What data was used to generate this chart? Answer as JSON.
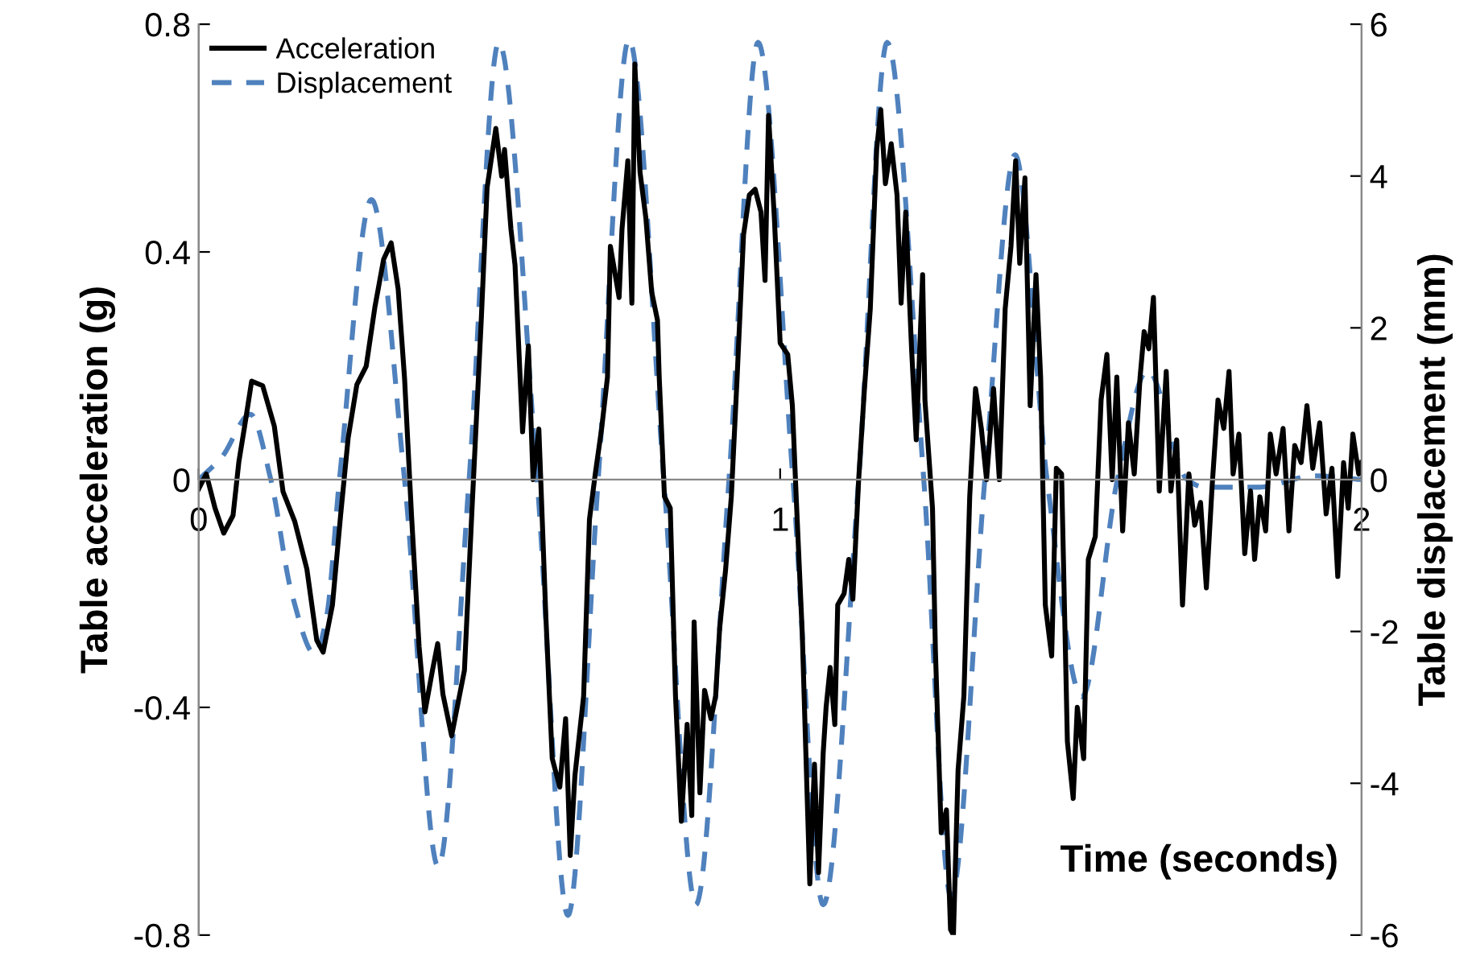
{
  "chart_data": {
    "type": "line",
    "xlabel": "Time (seconds)",
    "ylabel": "Table acceleration (g)",
    "y2label": "Table displacement (mm)",
    "xlim": [
      0,
      2
    ],
    "xticks": [
      0,
      1,
      2
    ],
    "ylim": [
      -0.8,
      0.8
    ],
    "yticks": [
      -0.8,
      -0.4,
      0,
      0.4,
      0.8
    ],
    "y2lim": [
      -6,
      6
    ],
    "y2ticks": [
      -6,
      -4,
      -2,
      0,
      2,
      4,
      6
    ],
    "grid": false,
    "legend": "top left",
    "marker": "none",
    "series": [
      {
        "name": "Acceleration",
        "color": "#000000",
        "line_style": "solid",
        "axis": "y",
        "x": [
          0,
          0.013,
          0.028,
          0.043,
          0.059,
          0.069,
          0.079,
          0.091,
          0.11,
          0.13,
          0.145,
          0.165,
          0.186,
          0.203,
          0.214,
          0.23,
          0.244,
          0.257,
          0.272,
          0.288,
          0.303,
          0.318,
          0.331,
          0.343,
          0.354,
          0.366,
          0.379,
          0.389,
          0.402,
          0.411,
          0.42,
          0.435,
          0.447,
          0.457,
          0.47,
          0.486,
          0.496,
          0.511,
          0.521,
          0.526,
          0.537,
          0.544,
          0.557,
          0.567,
          0.575,
          0.585,
          0.597,
          0.608,
          0.621,
          0.631,
          0.639,
          0.647,
          0.662,
          0.672,
          0.682,
          0.693,
          0.703,
          0.708,
          0.723,
          0.728,
          0.738,
          0.745,
          0.75,
          0.759,
          0.769,
          0.779,
          0.789,
          0.792,
          0.801,
          0.811,
          0.82,
          0.83,
          0.84,
          0.848,
          0.852,
          0.862,
          0.87,
          0.881,
          0.889,
          0.896,
          0.906,
          0.916,
          0.926,
          0.937,
          0.947,
          0.957,
          0.967,
          0.974,
          0.98,
          0.99,
          1.0,
          1.013,
          1.021,
          1.028,
          1.038,
          1.051,
          1.059,
          1.066,
          1.074,
          1.079,
          1.086,
          1.094,
          1.099,
          1.11,
          1.118,
          1.125,
          1.135,
          1.145,
          1.155,
          1.166,
          1.173,
          1.181,
          1.191,
          1.201,
          1.208,
          1.216,
          1.226,
          1.234,
          1.245,
          1.249,
          1.262,
          1.267,
          1.277,
          1.286,
          1.293,
          1.298,
          1.306,
          1.316,
          1.326,
          1.336,
          1.346,
          1.355,
          1.367,
          1.377,
          1.387,
          1.397,
          1.405,
          1.412,
          1.421,
          1.43,
          1.44,
          1.448,
          1.456,
          1.467,
          1.475,
          1.484,
          1.494,
          1.504,
          1.511,
          1.522,
          1.53,
          1.542,
          1.552,
          1.562,
          1.571,
          1.579,
          1.589,
          1.599,
          1.609,
          1.619,
          1.626,
          1.634,
          1.642,
          1.652,
          1.664,
          1.672,
          1.682,
          1.692,
          1.703,
          1.713,
          1.723,
          1.733,
          1.743,
          1.753,
          1.763,
          1.772,
          1.779,
          1.789,
          1.799,
          1.809,
          1.816,
          1.825,
          1.835,
          1.843,
          1.853,
          1.865,
          1.875,
          1.885,
          1.896,
          1.906,
          1.916,
          1.928,
          1.939,
          1.949,
          1.959,
          1.969,
          1.977,
          1.985,
          1.995,
          2.0
        ],
        "values": [
          -0.016,
          0.01,
          -0.05,
          -0.094,
          -0.063,
          0.031,
          0.094,
          0.173,
          0.165,
          0.094,
          -0.021,
          -0.073,
          -0.157,
          -0.282,
          -0.303,
          -0.22,
          -0.063,
          0.073,
          0.167,
          0.199,
          0.303,
          0.387,
          0.416,
          0.335,
          0.178,
          -0.063,
          -0.293,
          -0.408,
          -0.335,
          -0.288,
          -0.377,
          -0.45,
          -0.387,
          -0.335,
          -0.052,
          0.282,
          0.513,
          0.617,
          0.533,
          0.58,
          0.44,
          0.377,
          0.084,
          0.235,
          0,
          0.089,
          -0.24,
          -0.49,
          -0.54,
          -0.42,
          -0.66,
          -0.52,
          -0.38,
          -0.07,
          0.01,
          0.09,
          0.18,
          0.41,
          0.32,
          0.44,
          0.56,
          0.31,
          0.73,
          0.54,
          0.46,
          0.33,
          0.28,
          0.18,
          -0.03,
          -0.05,
          -0.38,
          -0.6,
          -0.43,
          -0.59,
          -0.25,
          -0.55,
          -0.37,
          -0.42,
          -0.38,
          -0.26,
          -0.16,
          -0.03,
          0.18,
          0.43,
          0.5,
          0.51,
          0.47,
          0.35,
          0.64,
          0.46,
          0.24,
          0.22,
          0.13,
          -0.04,
          -0.27,
          -0.71,
          -0.5,
          -0.69,
          -0.48,
          -0.4,
          -0.33,
          -0.43,
          -0.22,
          -0.2,
          -0.14,
          -0.21,
          0,
          0.16,
          0.3,
          0.58,
          0.65,
          0.52,
          0.59,
          0.5,
          0.31,
          0.47,
          0.23,
          0.07,
          0.36,
          0.14,
          -0.05,
          -0.3,
          -0.62,
          -0.58,
          -0.79,
          -0.8,
          -0.51,
          -0.38,
          -0.03,
          0.16,
          0.09,
          0,
          0.16,
          0,
          0.3,
          0.41,
          0.56,
          0.38,
          0.53,
          0.13,
          0.36,
          0.18,
          -0.22,
          -0.31,
          0.02,
          0.01,
          -0.46,
          -0.56,
          -0.4,
          -0.49,
          -0.14,
          -0.1,
          0.14,
          0.22,
          0,
          0.18,
          -0.09,
          0.1,
          0.01,
          0.18,
          0.26,
          0.23,
          0.32,
          -0.02,
          0.19,
          -0.02,
          0.07,
          -0.22,
          0.01,
          -0.08,
          -0.04,
          -0.19,
          -0.01,
          0.14,
          0.09,
          0.19,
          0.01,
          0.08,
          -0.13,
          -0.02,
          -0.14,
          -0.03,
          -0.09,
          0.08,
          0.01,
          0.09,
          -0.09,
          0.06,
          0.03,
          0.13,
          0.02,
          0.1,
          -0.06,
          0.02,
          -0.17,
          0.03,
          -0.05,
          0.08,
          0.01,
          0.03
        ]
      },
      {
        "name": "Displacement",
        "color": "#4f81bd",
        "line_style": "dashed",
        "axis": "y2",
        "x": [
          0,
          0.04,
          0.089,
          0.124,
          0.16,
          0.2,
          0.22,
          0.242,
          0.297,
          0.354,
          0.412,
          0.465,
          0.516,
          0.582,
          0.635,
          0.687,
          0.74,
          0.8,
          0.855,
          0.912,
          0.962,
          1.022,
          1.074,
          1.135,
          1.184,
          1.247,
          1.294,
          1.352,
          1.404,
          1.459,
          1.519,
          1.58,
          1.632,
          1.7,
          1.73,
          1.82,
          1.92,
          2.0
        ],
        "values": [
          0,
          0.3,
          0.86,
          0,
          -1.5,
          -2.3,
          -1.8,
          0,
          3.69,
          0,
          -5.1,
          0,
          5.76,
          0,
          -5.74,
          0,
          5.8,
          0,
          -5.6,
          0,
          5.76,
          0,
          -5.6,
          0,
          5.76,
          0,
          -5.5,
          0,
          4.28,
          0,
          -2.86,
          0,
          1.44,
          0,
          -0.1,
          -0.1,
          0.05,
          0
        ]
      }
    ]
  }
}
